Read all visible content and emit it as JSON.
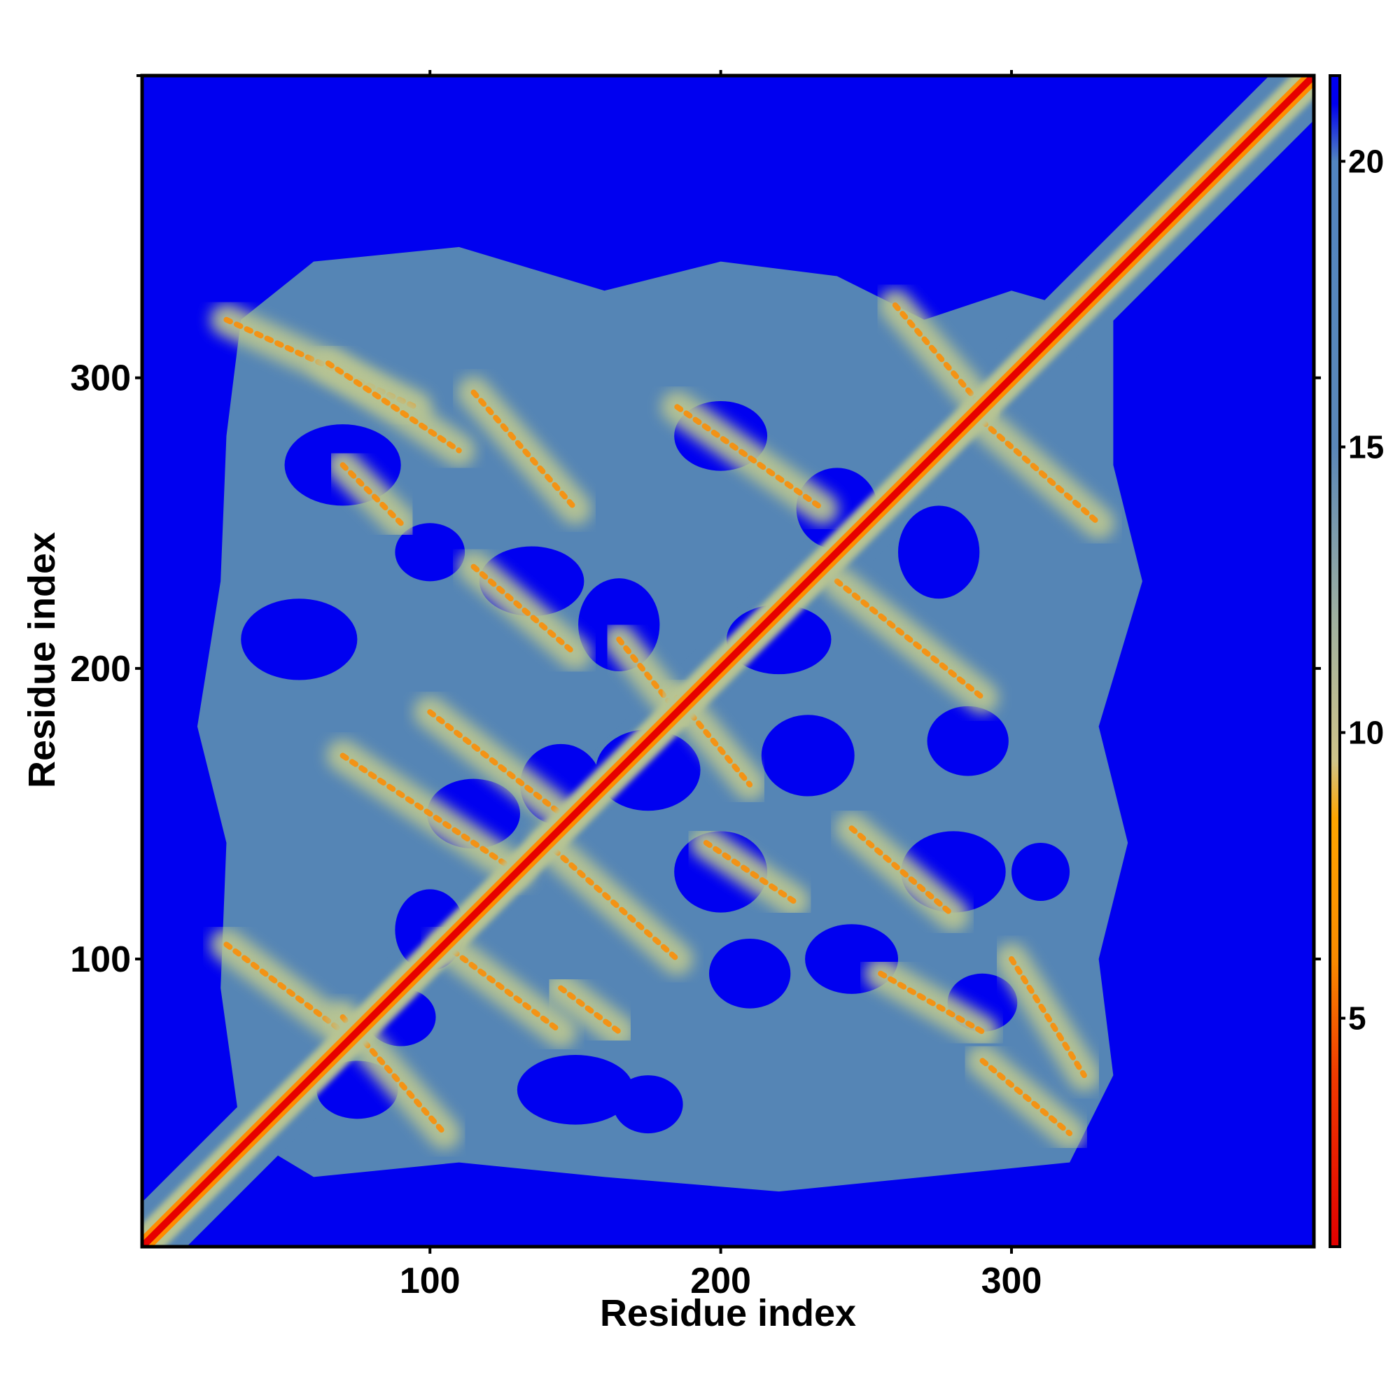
{
  "chart_data": {
    "type": "heatmap",
    "title": "",
    "xlabel": "Residue index",
    "ylabel": "Residue index",
    "x_ticks": [
      100,
      200,
      300
    ],
    "y_ticks": [
      100,
      200,
      300
    ],
    "xlim": [
      1,
      404
    ],
    "ylim": [
      1,
      404
    ],
    "colorbar": {
      "ticks": [
        5,
        10,
        15,
        20
      ],
      "range": [
        1,
        21.5
      ],
      "stops": [
        {
          "value": 1,
          "color": "#e00000"
        },
        {
          "value": 4,
          "color": "#f03a00"
        },
        {
          "value": 6,
          "color": "#f98a00"
        },
        {
          "value": 8.5,
          "color": "#ffa500"
        },
        {
          "value": 9.5,
          "color": "#cfc48a"
        },
        {
          "value": 12,
          "color": "#9fb0a0"
        },
        {
          "value": 15,
          "color": "#5a86b8"
        },
        {
          "value": 20,
          "color": "#5285c0"
        },
        {
          "value": 21,
          "color": "#0000ee"
        }
      ]
    },
    "colors": {
      "background": "#0000f0",
      "far": "#0000f0",
      "cloud": "#5585b5",
      "mid": "#b7c493",
      "near": "#ff8c00",
      "contact": "#e60000"
    },
    "diagonal": {
      "from": 1,
      "to": 404,
      "distance_center": 1
    },
    "contact_bands": [
      {
        "x": [
          30,
          95
        ],
        "y": [
          290,
          320
        ],
        "value": 6
      },
      {
        "x": [
          65,
          110
        ],
        "y": [
          275,
          305
        ],
        "value": 7
      },
      {
        "x": [
          115,
          150
        ],
        "y": [
          255,
          295
        ],
        "value": 7
      },
      {
        "x": [
          70,
          90
        ],
        "y": [
          250,
          270
        ],
        "value": 8
      },
      {
        "x": [
          115,
          150
        ],
        "y": [
          205,
          235
        ],
        "value": 6
      },
      {
        "x": [
          185,
          235
        ],
        "y": [
          255,
          290
        ],
        "value": 6
      },
      {
        "x": [
          260,
          290
        ],
        "y": [
          290,
          325
        ],
        "value": 6
      },
      {
        "x": [
          290,
          330
        ],
        "y": [
          250,
          285
        ],
        "value": 6
      },
      {
        "x": [
          240,
          290
        ],
        "y": [
          190,
          230
        ],
        "value": 7
      },
      {
        "x": [
          165,
          185
        ],
        "y": [
          185,
          210
        ],
        "value": 6
      },
      {
        "x": [
          185,
          210
        ],
        "y": [
          160,
          190
        ],
        "value": 6
      },
      {
        "x": [
          70,
          130
        ],
        "y": [
          130,
          170
        ],
        "value": 6
      },
      {
        "x": [
          100,
          145
        ],
        "y": [
          150,
          185
        ],
        "value": 7
      },
      {
        "x": [
          140,
          185
        ],
        "y": [
          100,
          140
        ],
        "value": 6
      },
      {
        "x": [
          195,
          225
        ],
        "y": [
          120,
          140
        ],
        "value": 7
      },
      {
        "x": [
          245,
          280
        ],
        "y": [
          115,
          145
        ],
        "value": 7
      },
      {
        "x": [
          105,
          145
        ],
        "y": [
          75,
          105
        ],
        "value": 6
      },
      {
        "x": [
          145,
          165
        ],
        "y": [
          75,
          90
        ],
        "value": 7
      },
      {
        "x": [
          30,
          70
        ],
        "y": [
          75,
          105
        ],
        "value": 6
      },
      {
        "x": [
          70,
          105
        ],
        "y": [
          40,
          80
        ],
        "value": 6
      },
      {
        "x": [
          290,
          320
        ],
        "y": [
          40,
          65
        ],
        "value": 6
      },
      {
        "x": [
          300,
          325
        ],
        "y": [
          60,
          100
        ],
        "value": 7
      },
      {
        "x": [
          255,
          290
        ],
        "y": [
          75,
          95
        ],
        "value": 9
      }
    ]
  }
}
